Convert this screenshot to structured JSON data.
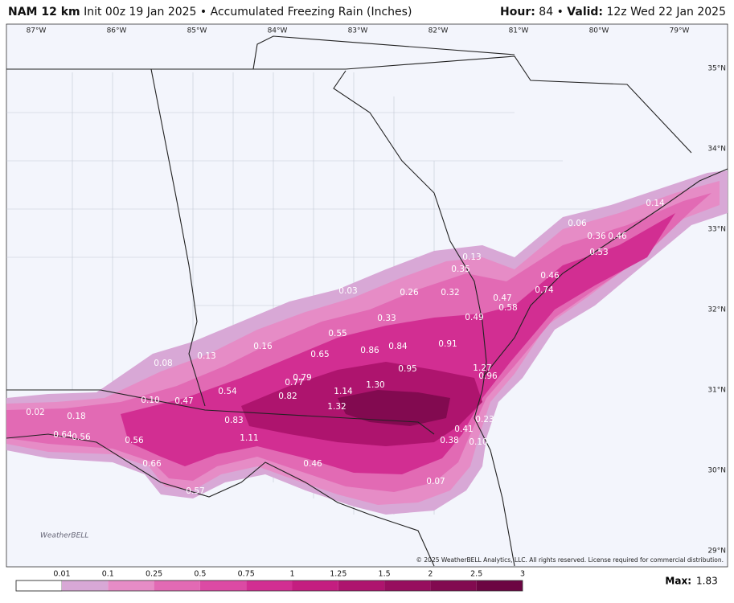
{
  "header": {
    "model": "NAM 12 km",
    "init": "Init 00z 19 Jan 2025",
    "left_separator": "•",
    "product": "Accumulated Freezing Rain (Inches)",
    "hour_label": "Hour:",
    "hour": 84,
    "right_separator": "•",
    "valid_label": "Valid:",
    "valid": "12z Wed 22 Jan 2025"
  },
  "map": {
    "longitude_labels": [
      "87°W",
      "86°W",
      "85°W",
      "84°W",
      "83°W",
      "82°W",
      "81°W",
      "80°W",
      "79°W"
    ],
    "latitude_labels": [
      "35°N",
      "34°N",
      "33°N",
      "32°N",
      "31°N",
      "30°N",
      "29°N"
    ],
    "value_labels": [
      "0.14",
      "0.06",
      "0.36",
      "0.46",
      "0.53",
      "0.13",
      "0.35",
      "0.46",
      "0.03",
      "0.26",
      "0.32",
      "0.47",
      "0.74",
      "0.58",
      "0.33",
      "0.49",
      "0.55",
      "0.16",
      "0.86",
      "0.84",
      "0.91",
      "0.65",
      "0.13",
      "0.08",
      "0.95",
      "1.27",
      "0.96",
      "0.79",
      "0.77",
      "1.30",
      "1.14",
      "0.54",
      "0.82",
      "0.47",
      "0.10",
      "1.32",
      "0.02",
      "0.18",
      "0.83",
      "0.23",
      "0.41",
      "0.64",
      "0.56",
      "1.11",
      "0.38",
      "0.10",
      "0.56",
      "0.46",
      "0.66",
      "0.07",
      "0.57"
    ],
    "logo": "WeatherBELL",
    "copyright": "© 2025 WeatherBELL Analytics, LLC. All rights reserved. License required for commercial distribution."
  },
  "colorbar": {
    "labels": [
      "0.01",
      "0.1",
      "0.25",
      "0.5",
      "0.75",
      "1",
      "1.25",
      "1.5",
      "2",
      "2.5",
      "3"
    ],
    "colors": [
      "#ffffff",
      "#d8a8d6",
      "#e68cc6",
      "#e26ab4",
      "#dc4aa4",
      "#d22e92",
      "#c41e80",
      "#ae146e",
      "#970e5e",
      "#820a50",
      "#6c0542"
    ],
    "max_label": "Max:",
    "max": 1.83
  }
}
